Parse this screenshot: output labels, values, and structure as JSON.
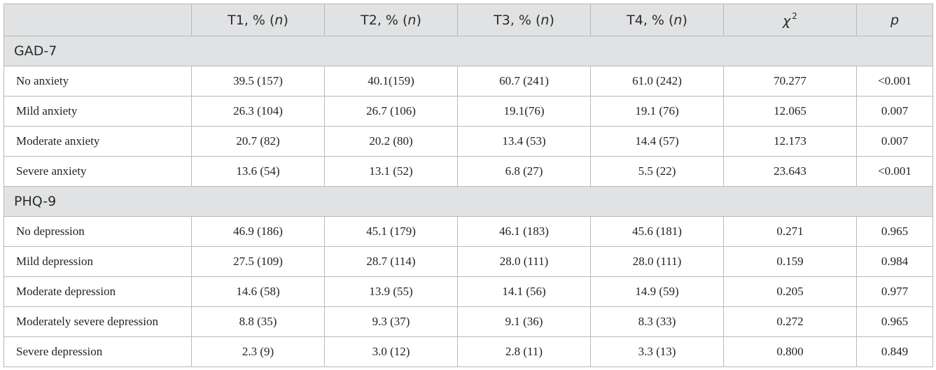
{
  "header": {
    "blank": "",
    "cols": [
      {
        "main": "T1, % (",
        "italic": "n",
        "close": ")"
      },
      {
        "main": "T2, % (",
        "italic": "n",
        "close": ")"
      },
      {
        "main": "T3, % (",
        "italic": "n",
        "close": ")"
      },
      {
        "main": "T4, % (",
        "italic": "n",
        "close": ")"
      }
    ],
    "chi": {
      "symbol": "χ",
      "exponent": "2"
    },
    "p": "p"
  },
  "sections": [
    {
      "title": "GAD-7",
      "rows": [
        {
          "label": "No anxiety",
          "t1": "39.5 (157)",
          "t2": "40.1(159)",
          "t3": "60.7 (241)",
          "t4": "61.0 (242)",
          "chi2": "70.277",
          "p": "<0.001"
        },
        {
          "label": "Mild anxiety",
          "t1": "26.3 (104)",
          "t2": "26.7 (106)",
          "t3": "19.1(76)",
          "t4": "19.1 (76)",
          "chi2": "12.065",
          "p": "0.007"
        },
        {
          "label": "Moderate anxiety",
          "t1": "20.7 (82)",
          "t2": "20.2 (80)",
          "t3": "13.4 (53)",
          "t4": "14.4 (57)",
          "chi2": "12.173",
          "p": "0.007"
        },
        {
          "label": "Severe anxiety",
          "t1": "13.6 (54)",
          "t2": "13.1 (52)",
          "t3": "6.8 (27)",
          "t4": "5.5 (22)",
          "chi2": "23.643",
          "p": "<0.001"
        }
      ]
    },
    {
      "title": "PHQ-9",
      "rows": [
        {
          "label": "No depression",
          "t1": "46.9 (186)",
          "t2": "45.1 (179)",
          "t3": "46.1 (183)",
          "t4": "45.6 (181)",
          "chi2": "0.271",
          "p": "0.965"
        },
        {
          "label": "Mild depression",
          "t1": "27.5 (109)",
          "t2": "28.7 (114)",
          "t3": "28.0 (111)",
          "t4": "28.0 (111)",
          "chi2": "0.159",
          "p": "0.984"
        },
        {
          "label": "Moderate depression",
          "t1": "14.6 (58)",
          "t2": "13.9 (55)",
          "t3": "14.1 (56)",
          "t4": "14.9 (59)",
          "chi2": "0.205",
          "p": "0.977"
        },
        {
          "label": "Moderately severe depression",
          "t1": "8.8 (35)",
          "t2": "9.3 (37)",
          "t3": "9.1 (36)",
          "t4": "8.3 (33)",
          "chi2": "0.272",
          "p": "0.965"
        },
        {
          "label": "Severe depression",
          "t1": "2.3 (9)",
          "t2": "3.0 (12)",
          "t3": "2.8 (11)",
          "t4": "3.3 (13)",
          "chi2": "0.800",
          "p": "0.849"
        }
      ]
    }
  ]
}
